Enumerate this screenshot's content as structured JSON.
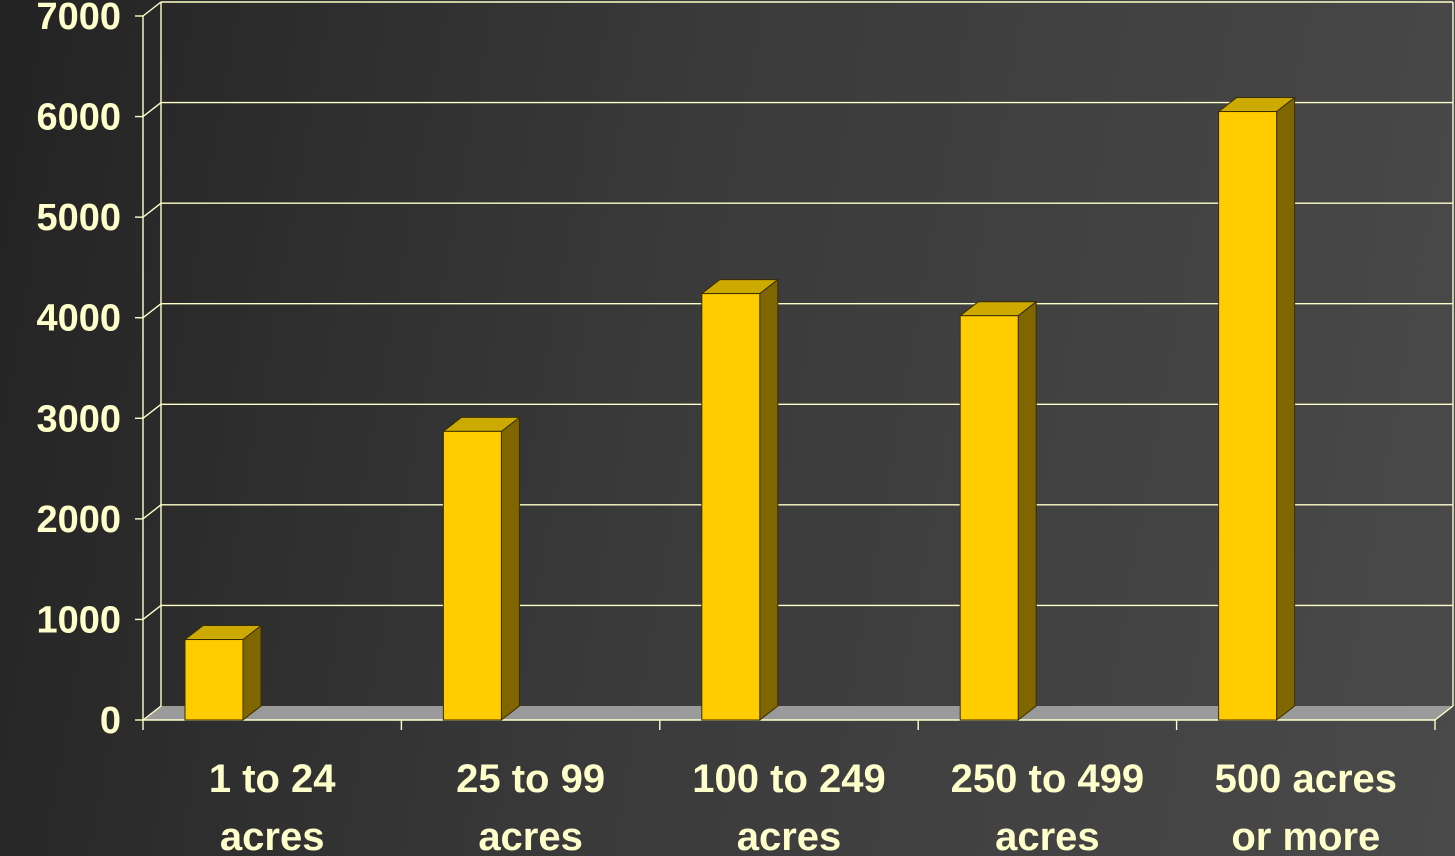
{
  "chart_data": {
    "type": "bar",
    "categories": [
      [
        "1 to 24",
        "acres"
      ],
      [
        "25 to 99",
        "acres"
      ],
      [
        "100 to 249",
        "acres"
      ],
      [
        "250 to 499",
        "acres"
      ],
      [
        "500 acres",
        "or more"
      ]
    ],
    "values": [
      800,
      2870,
      4240,
      4020,
      6050
    ],
    "yticks": [
      "0",
      "1000",
      "2000",
      "3000",
      "4000",
      "5000",
      "6000",
      "7000"
    ],
    "ylim": [
      0,
      7000
    ],
    "grid": true,
    "legend": "none",
    "title": "",
    "xlabel": "",
    "ylabel": ""
  },
  "colors": {
    "bar_front": "#ffcc00",
    "bar_top": "#ccaa00",
    "bar_side": "#806600",
    "gridline": "#ffffcc",
    "label": "#ffffcc",
    "floor": "#9a9a9a"
  }
}
